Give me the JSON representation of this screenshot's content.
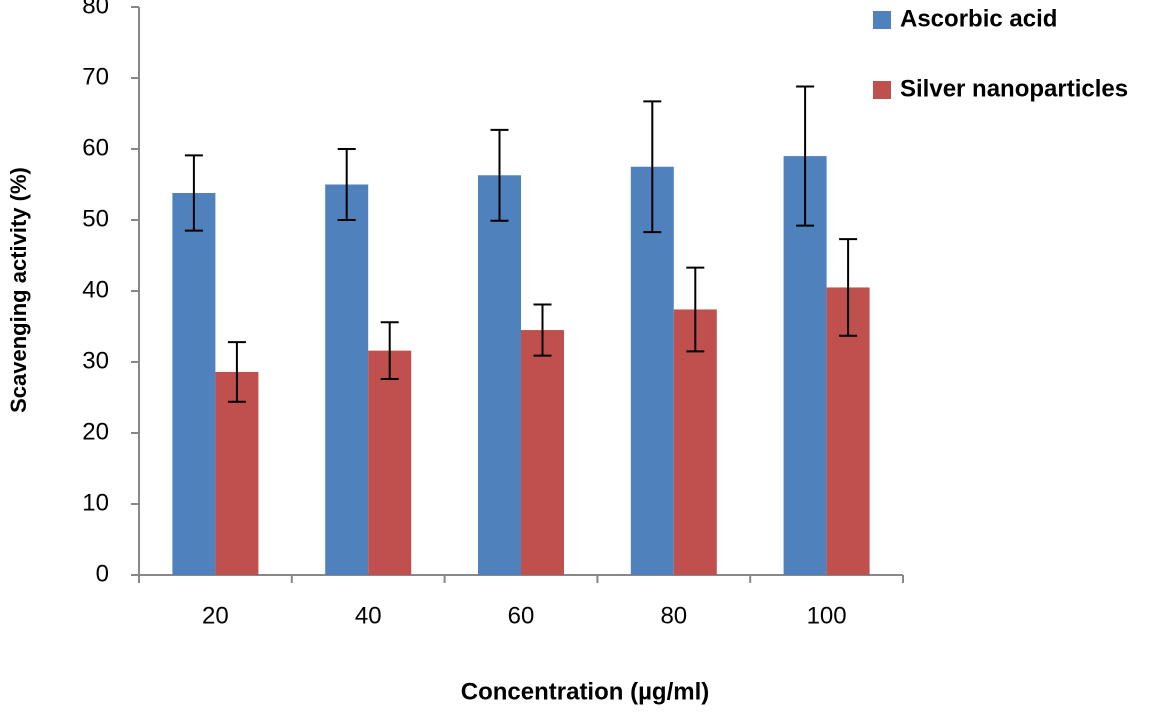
{
  "chart_data": {
    "type": "bar",
    "xlabel": "Concentration (µg/ml)",
    "ylabel": "Scavenging activity  (%)",
    "categories": [
      "20",
      "40",
      "60",
      "80",
      "100"
    ],
    "series": [
      {
        "name": "Ascorbic acid",
        "color": "#4f81bd",
        "values": [
          53.8,
          55,
          56.3,
          57.5,
          59
        ],
        "errors": [
          5.3,
          5,
          6.4,
          9.2,
          9.8
        ]
      },
      {
        "name": "Silver nanoparticles",
        "color": "#c0504d",
        "values": [
          28.6,
          31.6,
          34.5,
          37.4,
          40.5
        ],
        "errors": [
          4.2,
          4,
          3.6,
          5.9,
          6.8
        ]
      }
    ],
    "ylim": [
      0,
      80
    ],
    "yticks": [
      0,
      10,
      20,
      30,
      40,
      50,
      60,
      70,
      80
    ],
    "grid": false,
    "legend": "top-right"
  }
}
